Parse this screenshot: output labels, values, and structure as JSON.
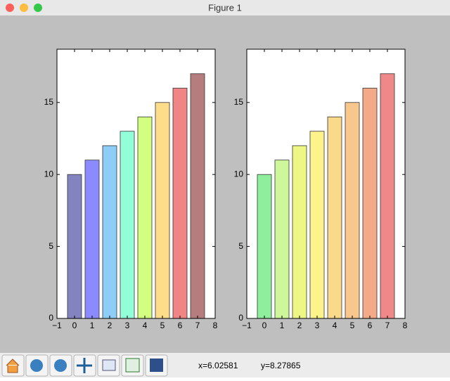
{
  "window": {
    "title": "Figure 1"
  },
  "chart_data": [
    {
      "type": "bar",
      "x": [
        0,
        1,
        2,
        3,
        4,
        5,
        6,
        7
      ],
      "values": [
        10,
        11,
        12,
        13,
        14,
        15,
        16,
        17
      ],
      "colors": [
        "#8383c0",
        "#8b8bff",
        "#8dcdf7",
        "#93ffd9",
        "#d2ff7f",
        "#fddc8a",
        "#f08585",
        "#b57d7d"
      ],
      "xlim": [
        -1,
        8
      ],
      "ylim": [
        0,
        18.7
      ],
      "xticks": [
        {
          "value": -1,
          "label": "−1"
        },
        0,
        1,
        2,
        3,
        4,
        5,
        6,
        7,
        8
      ],
      "yticks": [
        0,
        5,
        10,
        15
      ]
    },
    {
      "type": "bar",
      "x": [
        0,
        1,
        2,
        3,
        4,
        5,
        6,
        7
      ],
      "values": [
        10,
        11,
        12,
        13,
        14,
        15,
        16,
        17
      ],
      "colors": [
        "#8fee9c",
        "#cdf79a",
        "#eef784",
        "#fdf38b",
        "#fbd98b",
        "#f8c78d",
        "#f2aa88",
        "#ef8888"
      ],
      "xlim": [
        -1,
        8
      ],
      "ylim": [
        0,
        18.7
      ],
      "xticks": [
        {
          "value": -1,
          "label": "−1"
        },
        0,
        1,
        2,
        3,
        4,
        5,
        6,
        7,
        8
      ],
      "yticks": [
        0,
        5,
        10,
        15
      ]
    }
  ],
  "status": {
    "x": "x=6.02581",
    "y": "y=8.27865"
  }
}
